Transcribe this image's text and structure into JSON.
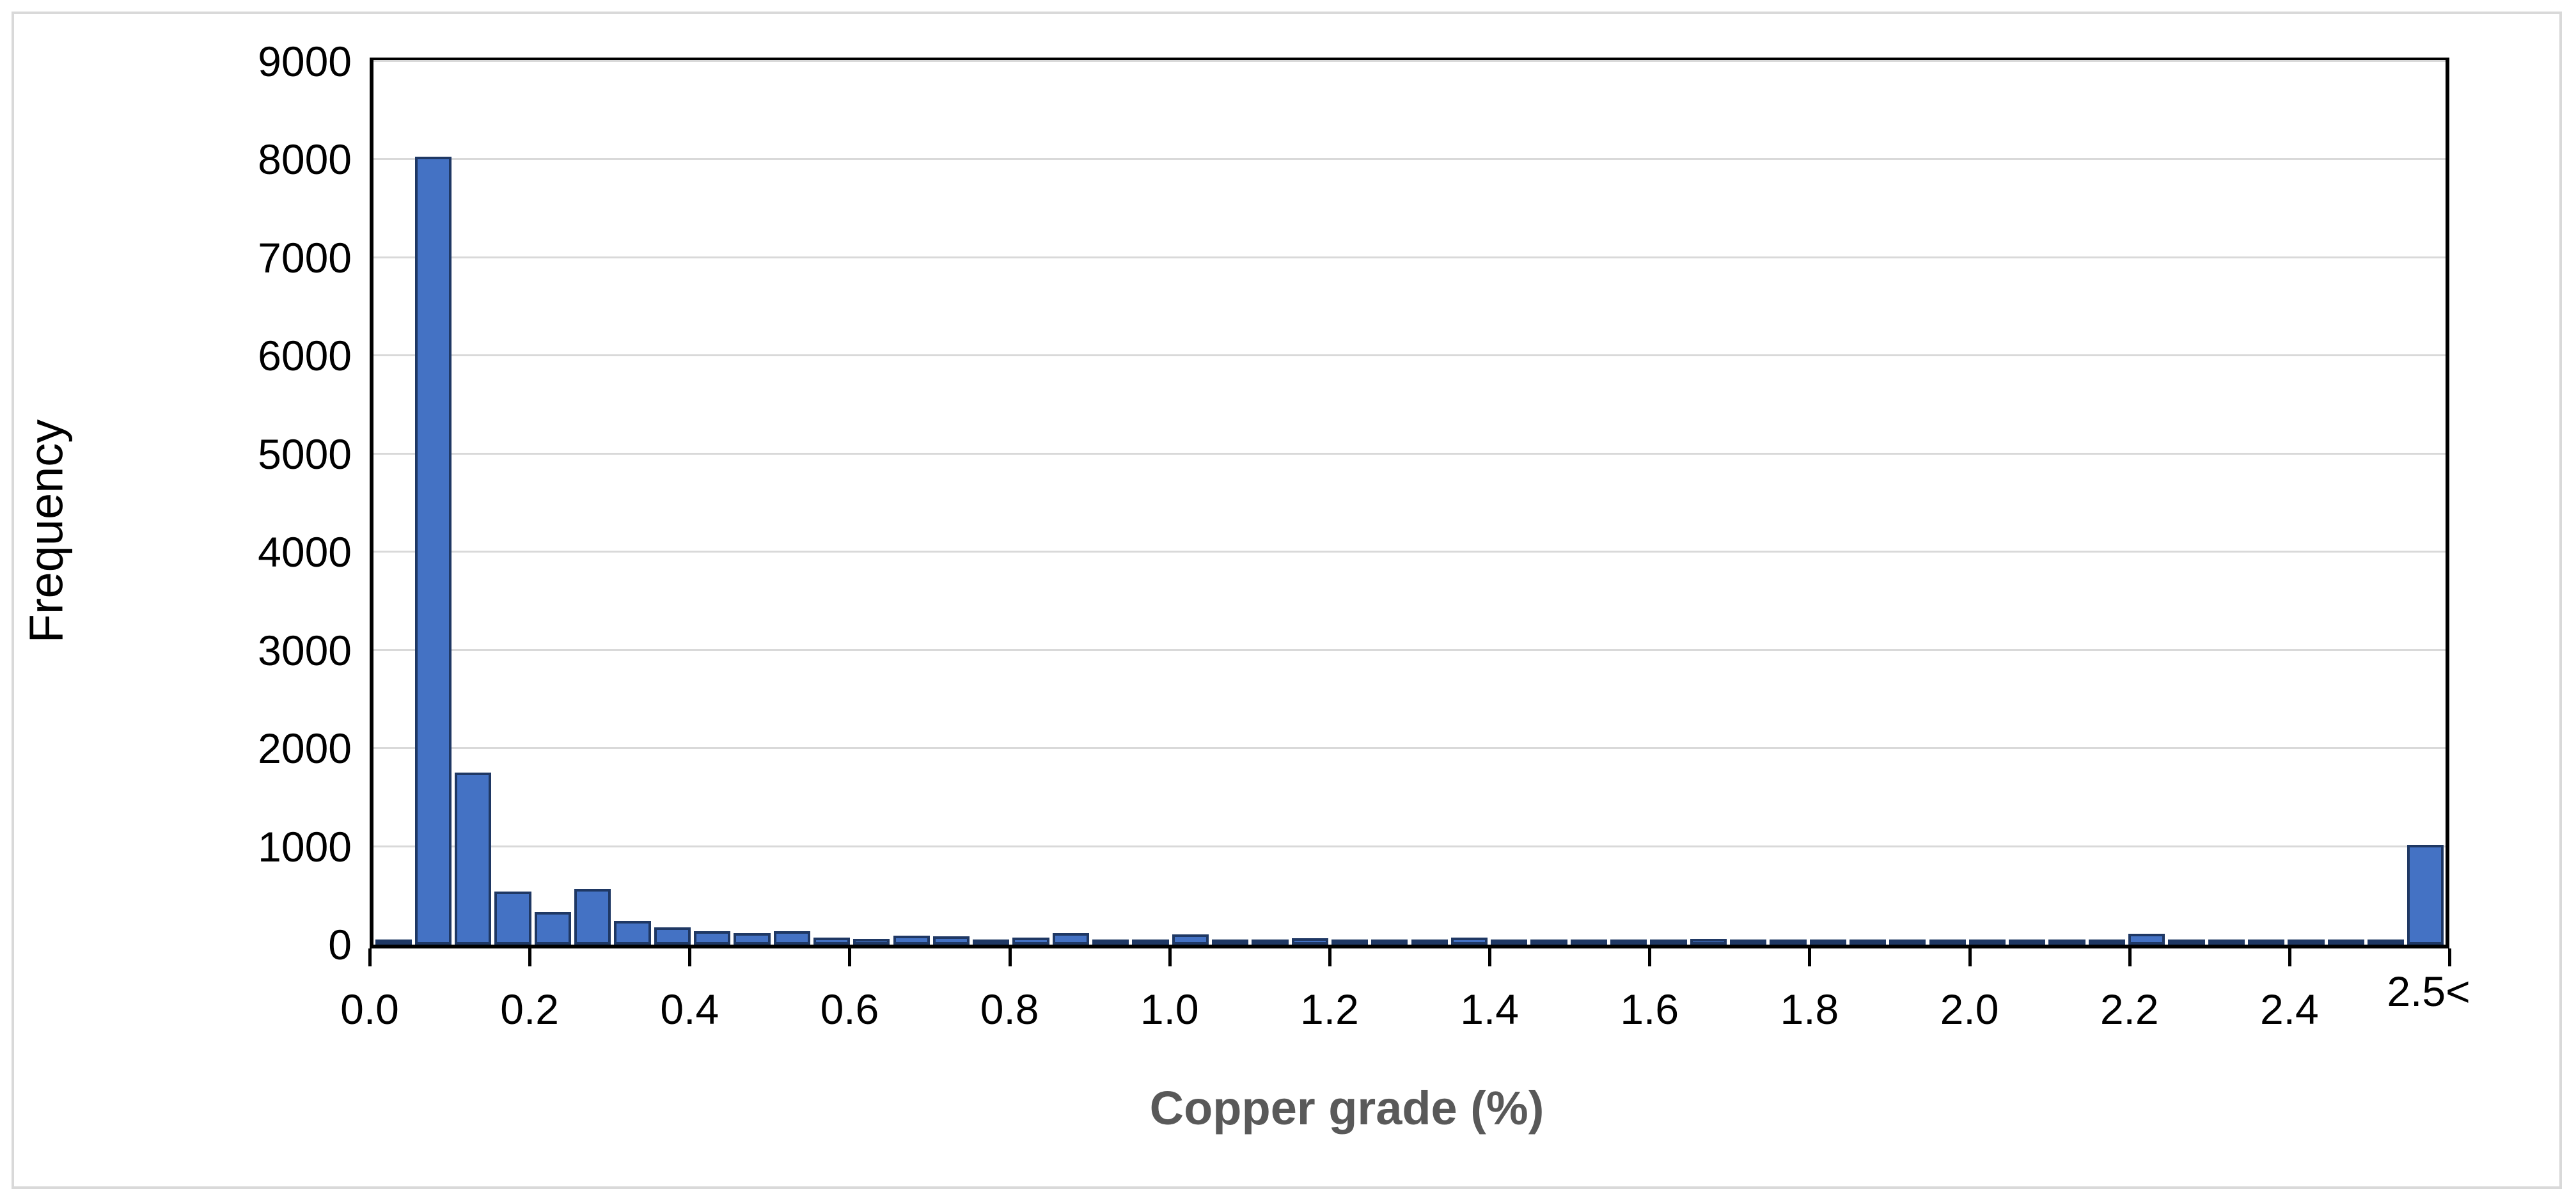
{
  "colors": {
    "bar_fill": "#4472C4",
    "bar_border": "#1F3864",
    "gridline": "#D9D9D9",
    "axis": "#000000",
    "x_title_color": "#595959",
    "frame_border": "#D9D9D9"
  },
  "chart_data": {
    "type": "bar",
    "subtype": "histogram",
    "title": "",
    "xlabel": "Copper grade (%)",
    "ylabel": "Frequency",
    "ylim": [
      0,
      9000
    ],
    "y_ticks": [
      0,
      1000,
      2000,
      3000,
      4000,
      5000,
      6000,
      7000,
      8000,
      9000
    ],
    "x_tick_labels": [
      "0.0",
      "0.2",
      "0.4",
      "0.6",
      "0.8",
      "1.0",
      "1.2",
      "1.4",
      "1.6",
      "1.8",
      "2.0",
      "2.2",
      "2.4",
      "2.5<"
    ],
    "x_tick_step": 0.2,
    "bin_width": 0.05,
    "overflow_bin_label": "2.5<",
    "grid": "horizontal",
    "legend": "none",
    "bin_starts": [
      0.0,
      0.05,
      0.1,
      0.15,
      0.2,
      0.25,
      0.3,
      0.35,
      0.4,
      0.45,
      0.5,
      0.55,
      0.6,
      0.65,
      0.7,
      0.75,
      0.8,
      0.85,
      0.9,
      0.95,
      1.0,
      1.05,
      1.1,
      1.15,
      1.2,
      1.25,
      1.3,
      1.35,
      1.4,
      1.45,
      1.5,
      1.55,
      1.6,
      1.65,
      1.7,
      1.75,
      1.8,
      1.85,
      1.9,
      1.95,
      2.0,
      2.05,
      2.1,
      2.15,
      2.2,
      2.25,
      2.3,
      2.35,
      2.4,
      2.45,
      2.5,
      2.55
    ],
    "values": [
      30,
      8030,
      1750,
      540,
      330,
      570,
      240,
      175,
      140,
      120,
      140,
      70,
      60,
      90,
      85,
      40,
      75,
      120,
      45,
      35,
      105,
      45,
      45,
      65,
      35,
      45,
      40,
      70,
      35,
      20,
      45,
      20,
      30,
      60,
      15,
      35,
      50,
      40,
      20,
      20,
      20,
      30,
      25,
      50,
      110,
      10,
      25,
      20,
      25,
      30,
      35,
      1020
    ]
  }
}
